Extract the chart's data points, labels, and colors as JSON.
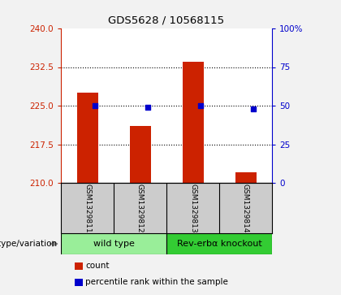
{
  "title": "GDS5628 / 10568115",
  "samples": [
    "GSM1329811",
    "GSM1329812",
    "GSM1329813",
    "GSM1329814"
  ],
  "counts": [
    227.5,
    221.0,
    233.5,
    212.0
  ],
  "percentiles": [
    50.0,
    49.0,
    50.0,
    48.0
  ],
  "ylim_left": [
    210,
    240
  ],
  "ylim_right": [
    0,
    100
  ],
  "yticks_left": [
    210,
    217.5,
    225,
    232.5,
    240
  ],
  "yticks_right": [
    0,
    25,
    50,
    75,
    100
  ],
  "ytick_labels_right": [
    "0",
    "25",
    "50",
    "75",
    "100%"
  ],
  "bar_color": "#cc2200",
  "dot_color": "#0000cc",
  "bar_bottom": 210,
  "groups": [
    {
      "label": "wild type",
      "indices": [
        0,
        1
      ],
      "color": "#99ee99"
    },
    {
      "label": "Rev-erbα knockout",
      "indices": [
        2,
        3
      ],
      "color": "#33cc33"
    }
  ],
  "xlabel_group": "genotype/variation",
  "legend_items": [
    {
      "color": "#cc2200",
      "label": "count"
    },
    {
      "color": "#0000cc",
      "label": "percentile rank within the sample"
    }
  ],
  "bg_plot": "#ffffff",
  "bg_label": "#cccccc",
  "bg_figure": "#f2f2f2"
}
